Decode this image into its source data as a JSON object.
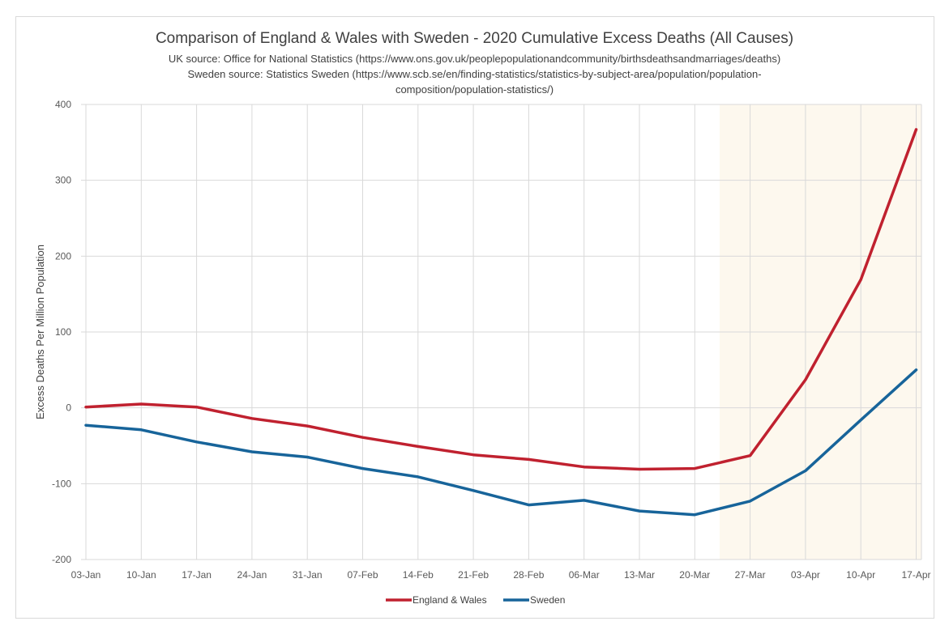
{
  "chart_data": {
    "type": "line",
    "title": "Comparison of England & Wales with Sweden - 2020 Cumulative Excess Deaths (All Causes)",
    "subtitle_lines": [
      "UK source: Office for National Statistics (https://www.ons.gov.uk/peoplepopulationandcommunity/birthsdeathsandmarriages/deaths)",
      "Sweden source: Statistics Sweden (https://www.scb.se/en/finding-statistics/statistics-by-subject-area/population/population-",
      "composition/population-statistics/)"
    ],
    "xlabel": "",
    "ylabel": "Excess Deaths Per Million Population",
    "ylim": [
      -200,
      400
    ],
    "yticks": [
      -200,
      -100,
      0,
      100,
      200,
      300,
      400
    ],
    "ytick_labels": [
      "-200",
      "-100",
      "0",
      "100",
      "200",
      "300",
      "400"
    ],
    "categories": [
      "03-Jan",
      "10-Jan",
      "17-Jan",
      "24-Jan",
      "31-Jan",
      "07-Feb",
      "14-Feb",
      "21-Feb",
      "28-Feb",
      "06-Mar",
      "13-Mar",
      "20-Mar",
      "27-Mar",
      "03-Apr",
      "10-Apr",
      "17-Apr"
    ],
    "grid": true,
    "legend_position": "bottom",
    "highlight_region": {
      "from": "20-Mar",
      "to": "17-Apr",
      "offset_start": 0.45,
      "color": "#fdf8ee"
    },
    "series": [
      {
        "name": "England & Wales",
        "color": "#c0212f",
        "values": [
          1,
          5,
          1,
          -14,
          -24,
          -39,
          -51,
          -62,
          -68,
          -78,
          -81,
          -80,
          -63,
          37,
          169,
          367
        ]
      },
      {
        "name": "Sweden",
        "color": "#17649a",
        "values": [
          -23,
          -29,
          -45,
          -58,
          -65,
          -80,
          -91,
          -109,
          -128,
          -122,
          -136,
          -141,
          -123,
          -83,
          -16,
          50
        ]
      }
    ]
  }
}
